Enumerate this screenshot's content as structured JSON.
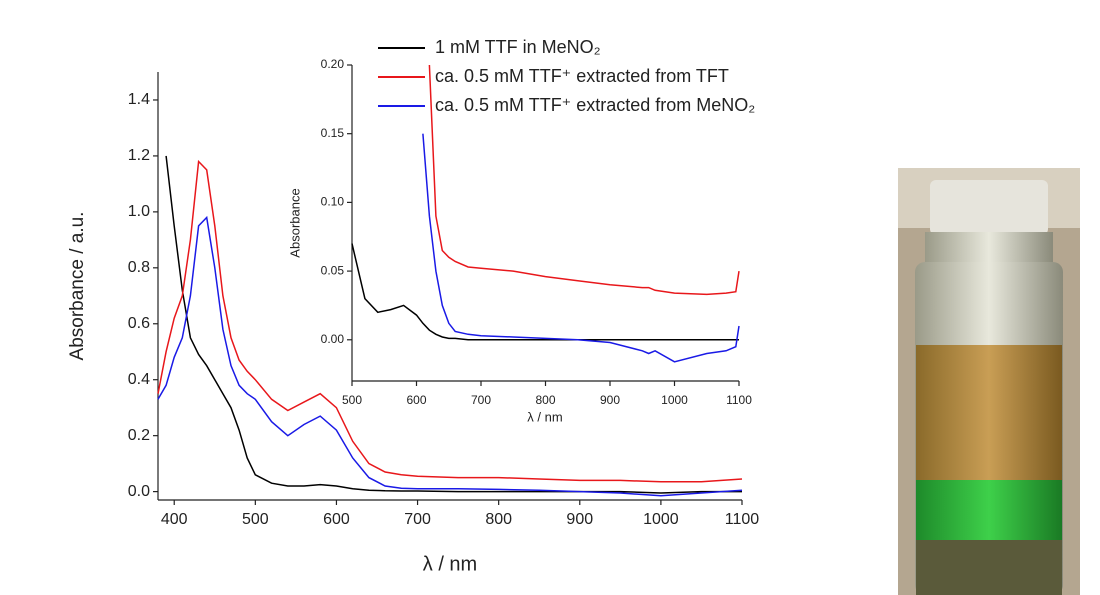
{
  "chart_data": [
    {
      "type": "line",
      "x_label": "λ / nm",
      "y_label": "Absorbance / a.u.",
      "x": [
        380,
        390,
        400,
        410,
        420,
        430,
        440,
        450,
        460,
        470,
        480,
        490,
        500,
        520,
        540,
        560,
        580,
        600,
        620,
        640,
        660,
        680,
        700,
        750,
        800,
        850,
        900,
        950,
        1000,
        1050,
        1100
      ],
      "series": [
        {
          "name": "1 mM TTF in MeNO₂",
          "color": "#000000",
          "values": [
            null,
            1.2,
            0.95,
            0.72,
            0.55,
            0.49,
            0.45,
            0.4,
            0.35,
            0.3,
            0.22,
            0.12,
            0.06,
            0.03,
            0.02,
            0.02,
            0.025,
            0.02,
            0.01,
            0.005,
            0.003,
            0.002,
            0.002,
            0.0,
            0.0,
            0.0,
            0.0,
            0.0,
            -0.005,
            0.0,
            0.0
          ]
        },
        {
          "name": "ca. 0.5 mM TTF⁺ extracted from TFT",
          "color": "#e8171b",
          "values": [
            0.35,
            0.5,
            0.62,
            0.7,
            0.9,
            1.18,
            1.15,
            0.95,
            0.7,
            0.55,
            0.47,
            0.43,
            0.4,
            0.33,
            0.29,
            0.32,
            0.35,
            0.3,
            0.18,
            0.1,
            0.07,
            0.06,
            0.055,
            0.05,
            0.05,
            0.045,
            0.04,
            0.04,
            0.035,
            0.035,
            0.045
          ]
        },
        {
          "name": "ca. 0.5 mM TTF⁺ extracted from MeNO₂",
          "color": "#1a1ae6",
          "values": [
            0.33,
            0.38,
            0.48,
            0.55,
            0.7,
            0.95,
            0.98,
            0.8,
            0.58,
            0.45,
            0.38,
            0.35,
            0.33,
            0.25,
            0.2,
            0.24,
            0.27,
            0.22,
            0.12,
            0.05,
            0.02,
            0.012,
            0.01,
            0.01,
            0.008,
            0.005,
            0.0,
            -0.005,
            -0.015,
            -0.005,
            0.005
          ]
        }
      ],
      "xlim": [
        380,
        1100
      ],
      "ylim": [
        -0.03,
        1.5
      ],
      "xticks": [
        400,
        500,
        600,
        700,
        800,
        900,
        1000,
        1100
      ],
      "yticks": [
        {
          "value": 0,
          "label": "0.0"
        },
        0.2,
        0.4,
        0.6,
        0.8,
        {
          "value": 1,
          "label": "1.0"
        },
        1.2,
        1.4
      ]
    },
    {
      "type": "line",
      "x_label": "λ / nm",
      "y_label": "Absorbance",
      "x": [
        500,
        520,
        540,
        560,
        580,
        600,
        610,
        620,
        630,
        640,
        650,
        660,
        680,
        700,
        750,
        800,
        850,
        900,
        950,
        960,
        970,
        1000,
        1050,
        1080,
        1095,
        1100
      ],
      "series": [
        {
          "color": "#000000",
          "values": [
            0.07,
            0.03,
            0.02,
            0.022,
            0.025,
            0.018,
            0.012,
            0.007,
            0.004,
            0.002,
            0.001,
            0.001,
            0.0,
            0.0,
            0.0,
            0.0,
            0.0,
            0.0,
            0.0,
            0.0,
            0.0,
            0.0,
            0.0,
            0.0,
            0.0,
            0.0
          ]
        },
        {
          "color": "#e8171b",
          "values": [
            null,
            null,
            null,
            null,
            null,
            null,
            null,
            0.2,
            0.09,
            0.065,
            0.06,
            0.057,
            0.053,
            0.052,
            0.05,
            0.046,
            0.043,
            0.04,
            0.038,
            0.038,
            0.036,
            0.034,
            0.033,
            0.034,
            0.035,
            0.05
          ]
        },
        {
          "color": "#1a1ae6",
          "values": [
            null,
            null,
            null,
            null,
            null,
            null,
            0.15,
            0.09,
            0.05,
            0.025,
            0.012,
            0.006,
            0.004,
            0.003,
            0.002,
            0.001,
            0.0,
            -0.002,
            -0.008,
            -0.01,
            -0.008,
            -0.016,
            -0.01,
            -0.008,
            -0.005,
            0.01
          ]
        }
      ],
      "xlim": [
        500,
        1100
      ],
      "ylim": [
        -0.03,
        0.2
      ],
      "xticks": [
        500,
        600,
        700,
        800,
        900,
        1000,
        1100
      ],
      "yticks": [
        {
          "value": 0,
          "label": "0.00"
        },
        {
          "value": 0.05,
          "label": "0.05"
        },
        {
          "value": 0.1,
          "label": "0.10"
        },
        {
          "value": 0.15,
          "label": "0.15"
        },
        {
          "value": 0.2,
          "label": "0.20"
        }
      ]
    }
  ]
}
